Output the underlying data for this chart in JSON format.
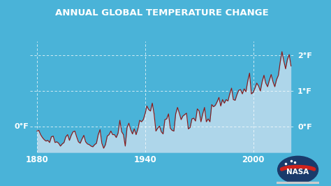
{
  "title": "ANNUAL GLOBAL TEMPERATURE CHANGE",
  "bg_color": "#4ab3d8",
  "fill_color": "#aed6ea",
  "line_color": "#8b1a1a",
  "grid_color": "#ffffff",
  "text_color": "#ffffff",
  "xticks": [
    1880,
    1940,
    2000
  ],
  "xlim": [
    1876,
    2023
  ],
  "ylim": [
    -0.72,
    2.4
  ],
  "yticks": [
    0,
    1,
    2
  ],
  "title_fontsize": 9.5,
  "tick_fontsize": 8.5,
  "label_fontsize": 8,
  "years": [
    1880,
    1881,
    1882,
    1883,
    1884,
    1885,
    1886,
    1887,
    1888,
    1889,
    1890,
    1891,
    1892,
    1893,
    1894,
    1895,
    1896,
    1897,
    1898,
    1899,
    1900,
    1901,
    1902,
    1903,
    1904,
    1905,
    1906,
    1907,
    1908,
    1909,
    1910,
    1911,
    1912,
    1913,
    1914,
    1915,
    1916,
    1917,
    1918,
    1919,
    1920,
    1921,
    1922,
    1923,
    1924,
    1925,
    1926,
    1927,
    1928,
    1929,
    1930,
    1931,
    1932,
    1933,
    1934,
    1935,
    1936,
    1937,
    1938,
    1939,
    1940,
    1941,
    1942,
    1943,
    1944,
    1945,
    1946,
    1947,
    1948,
    1949,
    1950,
    1951,
    1952,
    1953,
    1954,
    1955,
    1956,
    1957,
    1958,
    1959,
    1960,
    1961,
    1962,
    1963,
    1964,
    1965,
    1966,
    1967,
    1968,
    1969,
    1970,
    1971,
    1972,
    1973,
    1974,
    1975,
    1976,
    1977,
    1978,
    1979,
    1980,
    1981,
    1982,
    1983,
    1984,
    1985,
    1986,
    1987,
    1988,
    1989,
    1990,
    1991,
    1992,
    1993,
    1994,
    1995,
    1996,
    1997,
    1998,
    1999,
    2000,
    2001,
    2002,
    2003,
    2004,
    2005,
    2006,
    2007,
    2008,
    2009,
    2010,
    2011,
    2012,
    2013,
    2014,
    2015,
    2016,
    2017,
    2018,
    2019,
    2020,
    2021
  ],
  "anomalies_f": [
    -0.12,
    -0.1,
    -0.22,
    -0.3,
    -0.36,
    -0.4,
    -0.38,
    -0.44,
    -0.28,
    -0.26,
    -0.44,
    -0.42,
    -0.46,
    -0.54,
    -0.48,
    -0.44,
    -0.28,
    -0.22,
    -0.38,
    -0.24,
    -0.14,
    -0.12,
    -0.28,
    -0.42,
    -0.46,
    -0.34,
    -0.24,
    -0.42,
    -0.48,
    -0.5,
    -0.54,
    -0.56,
    -0.5,
    -0.46,
    -0.22,
    -0.08,
    -0.46,
    -0.6,
    -0.5,
    -0.26,
    -0.22,
    -0.12,
    -0.22,
    -0.22,
    -0.3,
    -0.18,
    0.18,
    -0.14,
    -0.22,
    -0.54,
    -0.02,
    0.1,
    -0.08,
    -0.2,
    -0.06,
    -0.22,
    -0.06,
    0.18,
    0.14,
    0.2,
    0.36,
    0.58,
    0.48,
    0.44,
    0.66,
    0.36,
    -0.12,
    -0.04,
    0.02,
    -0.14,
    -0.2,
    0.2,
    0.22,
    0.36,
    -0.04,
    -0.1,
    -0.12,
    0.36,
    0.54,
    0.38,
    0.2,
    0.3,
    0.34,
    0.38,
    -0.06,
    -0.02,
    0.22,
    0.24,
    0.16,
    0.5,
    0.44,
    0.14,
    0.36,
    0.54,
    0.14,
    0.22,
    0.14,
    0.62,
    0.56,
    0.6,
    0.7,
    0.82,
    0.58,
    0.76,
    0.66,
    0.76,
    0.72,
    0.92,
    1.08,
    0.76,
    0.74,
    0.9,
    1.02,
    1.04,
    0.92,
    1.06,
    0.98,
    1.28,
    1.5,
    0.92,
    0.96,
    1.08,
    1.22,
    1.14,
    1.0,
    1.26,
    1.44,
    1.22,
    1.12,
    1.3,
    1.46,
    1.26,
    1.12,
    1.32,
    1.44,
    1.8,
    2.1,
    1.84,
    1.62,
    1.88,
    2.02,
    1.7
  ]
}
